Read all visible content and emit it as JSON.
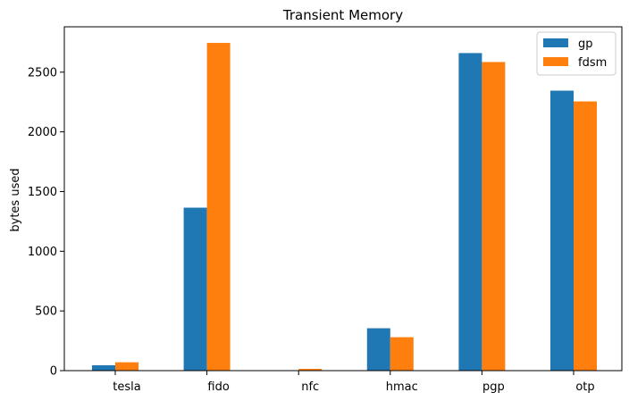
{
  "chart_data": {
    "type": "bar",
    "title": "Transient Memory",
    "xlabel": "",
    "ylabel": "bytes used",
    "categories": [
      "tesla",
      "fido",
      "nfc",
      "hmac",
      "pgp",
      "otp"
    ],
    "series": [
      {
        "name": "gp",
        "color": "#1f77b4",
        "values": [
          45,
          1365,
          0,
          355,
          2660,
          2345
        ]
      },
      {
        "name": "fdsm",
        "color": "#ff7f0e",
        "values": [
          70,
          2745,
          15,
          280,
          2585,
          2255
        ]
      }
    ],
    "ylim": [
      0,
      2880
    ],
    "yticks": [
      0,
      500,
      1000,
      1500,
      2000,
      2500
    ],
    "grid": false,
    "legend_position": "top-right"
  }
}
